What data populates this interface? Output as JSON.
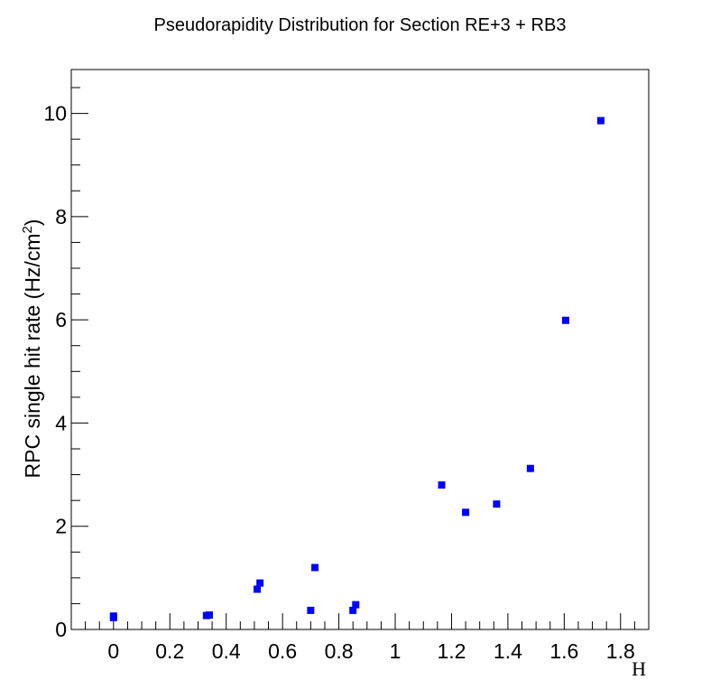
{
  "chart_data": {
    "type": "scatter",
    "title": "Pseudorapidity Distribution for Section RE+3 + RB3",
    "xlabel": "H",
    "ylabel_main": "RPC single hit rate (Hz/cm",
    "ylabel_sup": "2",
    "ylabel_tail": ")",
    "xlim": [
      -0.15,
      1.9
    ],
    "ylim": [
      0,
      10.85
    ],
    "x_ticks": [
      0,
      0.2,
      0.4,
      0.6,
      0.8,
      1,
      1.2,
      1.4,
      1.6,
      1.8
    ],
    "x_tick_labels": [
      "0",
      "0.2",
      "0.4",
      "0.6",
      "0.8",
      "1",
      "1.2",
      "1.4",
      "1.6",
      "1.8"
    ],
    "y_ticks": [
      0,
      2,
      4,
      6,
      8,
      10
    ],
    "y_tick_labels": [
      "0",
      "2",
      "4",
      "6",
      "8",
      "10"
    ],
    "x_minor_step": 0.05,
    "y_minor_step": 0.5,
    "grid": false,
    "marker_color": "#0000ff",
    "series": [
      {
        "x": [
          0.0,
          0.0,
          0.33,
          0.34,
          0.51,
          0.52,
          0.7,
          0.715,
          0.85,
          0.86,
          1.165,
          1.25,
          1.36,
          1.48,
          1.605,
          1.73
        ],
        "y": [
          0.26,
          0.23,
          0.27,
          0.28,
          0.78,
          0.9,
          0.37,
          1.2,
          0.37,
          0.48,
          2.8,
          2.27,
          2.43,
          3.12,
          5.99,
          9.86
        ]
      }
    ]
  }
}
